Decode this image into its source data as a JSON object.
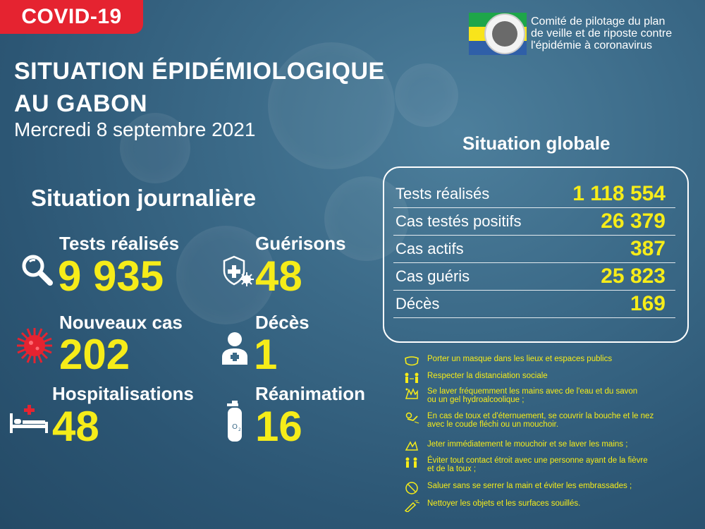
{
  "badge": "COVID-19",
  "header": {
    "title_line1": "SITUATION ÉPIDÉMIOLOGIQUE",
    "title_line2": "AU GABON",
    "date": "Mercredi 8 septembre 2021"
  },
  "committee": {
    "line1": "Comité de pilotage du plan",
    "line2": "de veille et de riposte contre",
    "line3": "l'épidémie à coronavirus"
  },
  "daily": {
    "title": "Situation journalière",
    "tests": {
      "label": "Tests réalisés",
      "value": "9 935",
      "icon": "magnifier-icon"
    },
    "recoveries": {
      "label": "Guérisons",
      "value": "48",
      "icon": "shield-virus-icon"
    },
    "new_cases": {
      "label": "Nouveaux cas",
      "value": "202",
      "icon": "virus-icon"
    },
    "deaths": {
      "label": "Décès",
      "value": "1",
      "icon": "doctor-icon"
    },
    "hospital": {
      "label": "Hospitalisations",
      "value": "48",
      "icon": "hospital-bed-icon"
    },
    "icu": {
      "label": "Réanimation",
      "value": "16",
      "icon": "oxygen-tank-icon"
    }
  },
  "global": {
    "title": "Situation globale",
    "rows": [
      {
        "label": "Tests réalisés",
        "value": "1 118 554"
      },
      {
        "label": "Cas testés positifs",
        "value": "26 379"
      },
      {
        "label": "Cas actifs",
        "value": "387"
      },
      {
        "label": "Cas guéris",
        "value": "25 823"
      },
      {
        "label": "Décès",
        "value": "169"
      }
    ]
  },
  "guidelines": [
    {
      "line1": "Porter un masque dans les lieux et espaces publics",
      "line2": ""
    },
    {
      "line1": "Respecter la distanciation sociale",
      "line2": ""
    },
    {
      "line1": "Se laver fréquemment les mains avec de l'eau et du savon",
      "line2": " ou un gel hydroalcoolique ;"
    },
    {
      "line1": "En cas de toux et d'éternuement, se couvrir la bouche et le nez",
      "line2": " avec le coude fléchi ou un mouchoir."
    },
    {
      "line1": "Jeter immédiatement le mouchoir et se laver les mains ;",
      "line2": ""
    },
    {
      "line1": "Éviter tout contact étroit avec une personne ayant de la fièvre",
      "line2": " et de la toux ;"
    },
    {
      "line1": "Saluer sans se serrer la main et éviter les embrassades ;",
      "line2": ""
    },
    {
      "line1": "Nettoyer les objets et les surfaces souillés.",
      "line2": ""
    }
  ],
  "colors": {
    "accent_yellow": "#f6ec19",
    "badge_red": "#e52330",
    "background": "#3b6a88"
  }
}
